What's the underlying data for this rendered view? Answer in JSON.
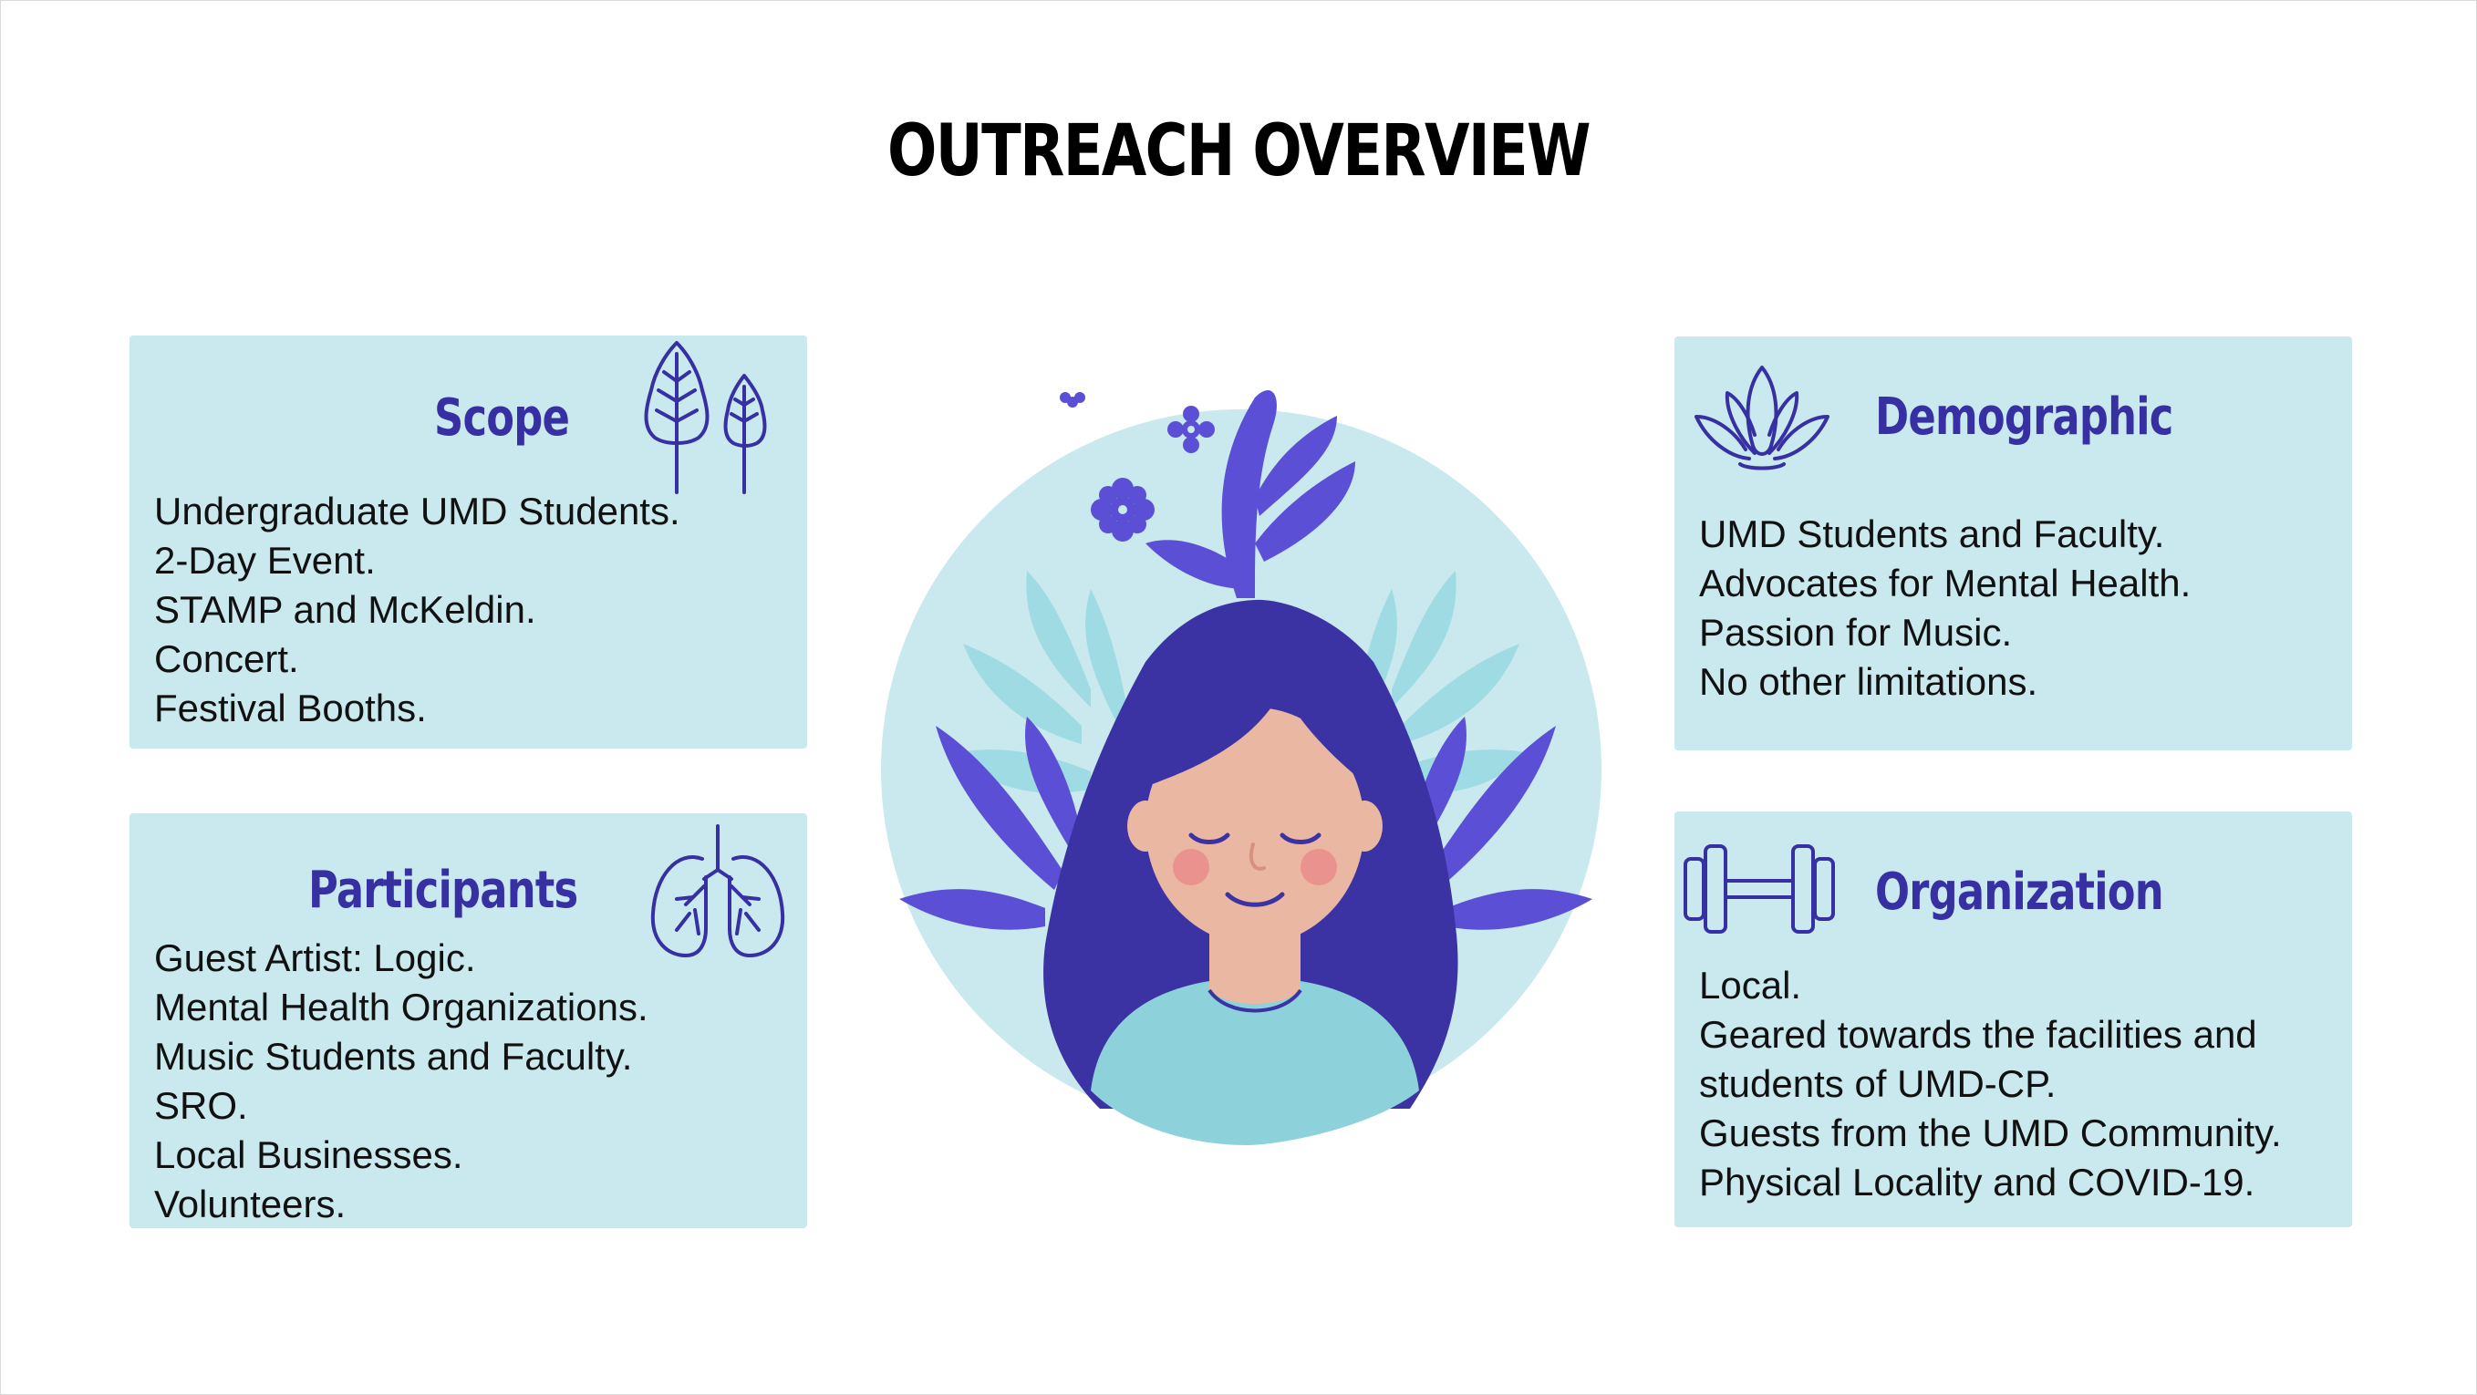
{
  "title": "OUTREACH OVERVIEW",
  "colors": {
    "card_background": "#c9e9ee",
    "heading": "#3730a3",
    "accent_purple": "#5b4fd6",
    "hair": "#3b32a3",
    "light_teal": "#9fdbe2"
  },
  "cards": {
    "scope": {
      "heading": "Scope",
      "icon": "trees-icon",
      "items": [
        "Undergraduate UMD Students.",
        "2-Day Event.",
        "STAMP and McKeldin.",
        "Concert.",
        "Festival Booths."
      ]
    },
    "participants": {
      "heading": "Participants",
      "icon": "lungs-icon",
      "items": [
        "Guest Artist: Logic.",
        "Mental Health Organizations.",
        "Music Students and Faculty.",
        "SRO.",
        "Local Businesses.",
        "Volunteers."
      ]
    },
    "demographic": {
      "heading": "Demographic",
      "icon": "lotus-icon",
      "items": [
        "UMD Students and Faculty.",
        "Advocates for Mental Health.",
        "Passion for Music.",
        "No other limitations."
      ]
    },
    "organization": {
      "heading": "Organization",
      "icon": "dumbbell-icon",
      "items": [
        "Local.",
        "Geared towards the facilities and",
        "students of UMD-CP.",
        "Guests from the UMD Community.",
        "Physical Locality and COVID-19."
      ]
    }
  },
  "illustration": {
    "icon": "calm-woman-with-plants-illustration"
  }
}
